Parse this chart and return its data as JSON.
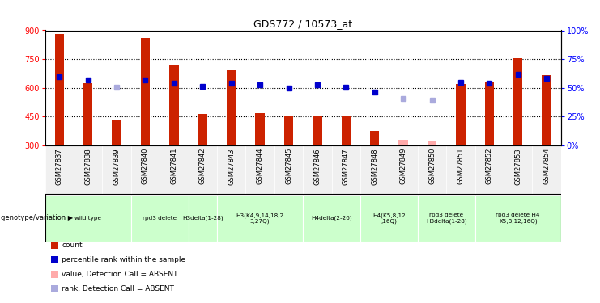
{
  "title": "GDS772 / 10573_at",
  "samples": [
    "GSM27837",
    "GSM27838",
    "GSM27839",
    "GSM27840",
    "GSM27841",
    "GSM27842",
    "GSM27843",
    "GSM27844",
    "GSM27845",
    "GSM27846",
    "GSM27847",
    "GSM27848",
    "GSM27849",
    "GSM27850",
    "GSM27851",
    "GSM27852",
    "GSM27853",
    "GSM27854"
  ],
  "counts": [
    880,
    625,
    435,
    860,
    720,
    465,
    690,
    470,
    450,
    455,
    455,
    375,
    null,
    null,
    620,
    630,
    755,
    665
  ],
  "counts_absent": [
    null,
    null,
    null,
    null,
    null,
    null,
    null,
    null,
    null,
    null,
    null,
    null,
    330,
    320,
    null,
    null,
    null,
    null
  ],
  "ranks": [
    660,
    640,
    null,
    640,
    625,
    608,
    625,
    615,
    600,
    615,
    605,
    580,
    null,
    null,
    630,
    625,
    670,
    650
  ],
  "ranks_absent": [
    null,
    null,
    605,
    null,
    null,
    null,
    null,
    null,
    null,
    null,
    null,
    null,
    545,
    535,
    null,
    null,
    null,
    null
  ],
  "ylim_left": [
    300,
    900
  ],
  "ylim_right": [
    0,
    100
  ],
  "yticks_left": [
    300,
    450,
    600,
    750,
    900
  ],
  "yticks_right": [
    0,
    25,
    50,
    75,
    100
  ],
  "bar_color": "#cc2200",
  "bar_absent_color": "#ffaaaa",
  "rank_color": "#0000cc",
  "rank_absent_color": "#aaaadd",
  "geno_color": "#ccffcc",
  "genotype_groups": [
    {
      "label": "wild type",
      "start": 0,
      "end": 3
    },
    {
      "label": "rpd3 delete",
      "start": 3,
      "end": 5
    },
    {
      "label": "H3delta(1-28)",
      "start": 5,
      "end": 6
    },
    {
      "label": "H3(K4,9,14,18,2\n3,27Q)",
      "start": 6,
      "end": 9
    },
    {
      "label": "H4delta(2-26)",
      "start": 9,
      "end": 11
    },
    {
      "label": "H4(K5,8,12\n,16Q)",
      "start": 11,
      "end": 13
    },
    {
      "label": "rpd3 delete\nH3delta(1-28)",
      "start": 13,
      "end": 15
    },
    {
      "label": "rpd3 delete H4\nK5,8,12,16Q)",
      "start": 15,
      "end": 18
    }
  ],
  "legend_labels": [
    "count",
    "percentile rank within the sample",
    "value, Detection Call = ABSENT",
    "rank, Detection Call = ABSENT"
  ],
  "legend_colors": [
    "#cc2200",
    "#0000cc",
    "#ffaaaa",
    "#aaaadd"
  ],
  "bg_color": "#f0f0f0"
}
